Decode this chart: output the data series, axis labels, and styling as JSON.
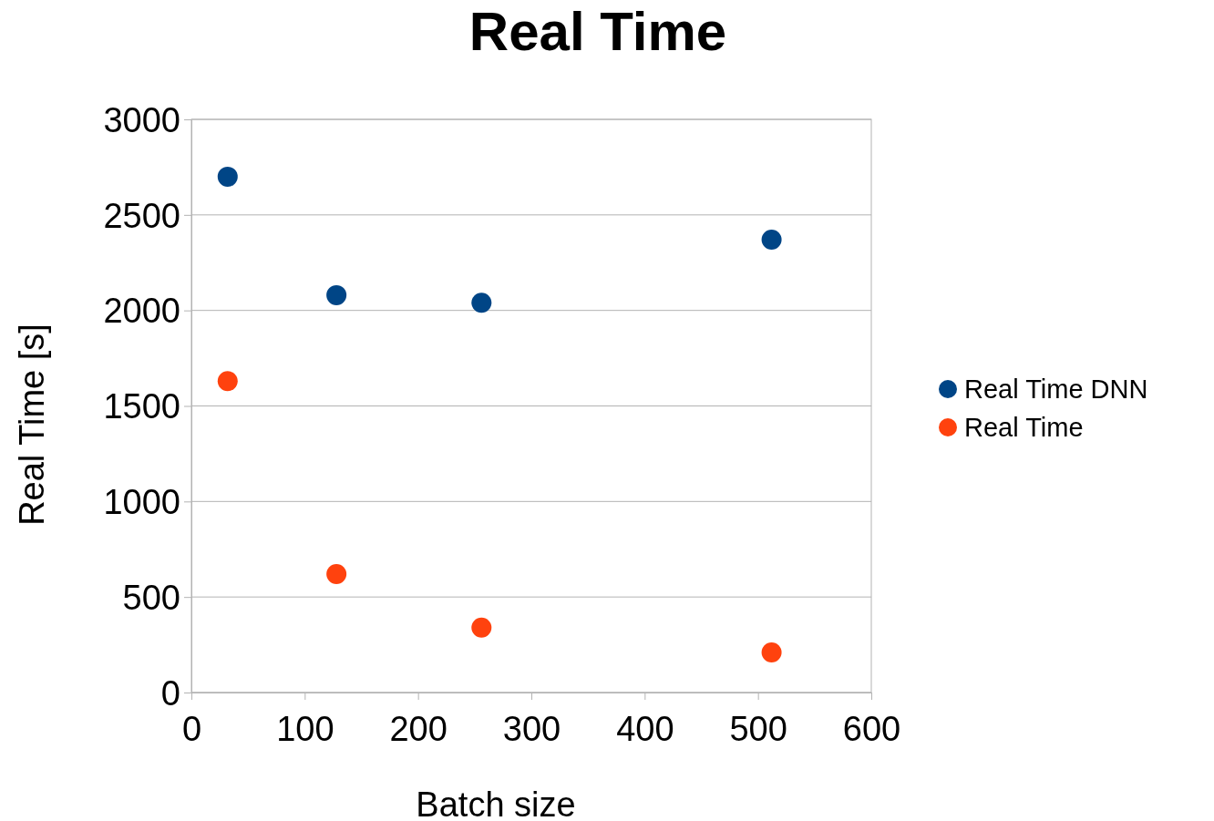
{
  "chart_data": {
    "type": "scatter",
    "title": "Real Time",
    "xlabel": "Batch size",
    "ylabel": "Real Time [s]",
    "x": [
      32,
      128,
      256,
      512
    ],
    "series": [
      {
        "name": "Real Time DNN",
        "color": "#004586",
        "values": [
          2700,
          2080,
          2040,
          2370
        ]
      },
      {
        "name": "Real Time",
        "color": "#ff420e",
        "values": [
          1630,
          620,
          340,
          210
        ]
      }
    ],
    "xlim": [
      0,
      600
    ],
    "xticks": [
      0,
      100,
      200,
      300,
      400,
      500,
      600
    ],
    "ylim": [
      0,
      3000
    ],
    "yticks": [
      0,
      500,
      1000,
      1500,
      2000,
      2500,
      3000
    ],
    "grid": "y",
    "legend": "right",
    "marker": "circle"
  }
}
